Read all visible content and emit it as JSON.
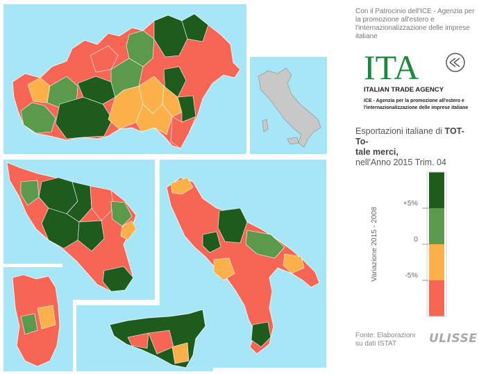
{
  "header": {
    "patronage_text": "Con il Patrocinio dell'ICE - Agenzia per la promozione all'estero e l'internazionalizzazione delle imprese italiane"
  },
  "logo": {
    "wordmark": "ITA",
    "agency_name": "ITALIAN TRADE AGENCY",
    "agency_subtitle_line1": "ICE - Agenzia per la promozione all'estero e",
    "agency_subtitle_line2": "l'internazionalizzazione delle imprese italiane",
    "brand_color": "#1a8a3a",
    "accent_color": "#d52b1e"
  },
  "title": {
    "prefix": "Esportazioni italiane di ",
    "product_code": "TOT- To-",
    "product_name": "tale merci,",
    "period": "nell'Anno 2015 Trim. 04"
  },
  "legend": {
    "axis_label": "Variazione 2015 - 2008",
    "ticks": [
      "+5%",
      "0",
      "-5%"
    ],
    "classes": [
      {
        "range": "> +5%",
        "color": "#1e5c1e"
      },
      {
        "range": "0 – +5%",
        "color": "#5a9a4a"
      },
      {
        "range": "-5% – 0",
        "color": "#fbb04a"
      },
      {
        "range": "< -5%",
        "color": "#f76554"
      }
    ]
  },
  "footer": {
    "source_line1": "Fonte: Elaborazioni",
    "source_line2": "su dati ISTAT",
    "brand": "ULISSE"
  },
  "colors": {
    "sea": "#a6e6f6",
    "dark_green": "#1e5c1e",
    "light_green": "#5a9a4a",
    "orange": "#fbb04a",
    "red": "#f76554",
    "inset_land": "#c8c8c8"
  }
}
